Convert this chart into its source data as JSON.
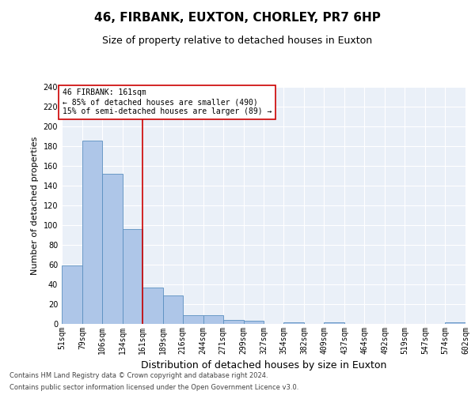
{
  "title": "46, FIRBANK, EUXTON, CHORLEY, PR7 6HP",
  "subtitle": "Size of property relative to detached houses in Euxton",
  "xlabel": "Distribution of detached houses by size in Euxton",
  "ylabel": "Number of detached properties",
  "bin_labels": [
    "51sqm",
    "79sqm",
    "106sqm",
    "134sqm",
    "161sqm",
    "189sqm",
    "216sqm",
    "244sqm",
    "271sqm",
    "299sqm",
    "327sqm",
    "354sqm",
    "382sqm",
    "409sqm",
    "437sqm",
    "464sqm",
    "492sqm",
    "519sqm",
    "547sqm",
    "574sqm",
    "602sqm"
  ],
  "bin_edges": [
    51,
    79,
    106,
    134,
    161,
    189,
    216,
    244,
    271,
    299,
    327,
    354,
    382,
    409,
    437,
    464,
    492,
    519,
    547,
    574,
    602
  ],
  "bar_heights": [
    59,
    186,
    152,
    96,
    37,
    29,
    9,
    9,
    4,
    3,
    0,
    2,
    0,
    2,
    0,
    0,
    0,
    0,
    0,
    2
  ],
  "bar_color": "#aec6e8",
  "bar_edge_color": "#5a8fc0",
  "property_line_x": 161,
  "property_line_color": "#cc0000",
  "ylim": [
    0,
    240
  ],
  "yticks": [
    0,
    20,
    40,
    60,
    80,
    100,
    120,
    140,
    160,
    180,
    200,
    220,
    240
  ],
  "annotation_text": "46 FIRBANK: 161sqm\n← 85% of detached houses are smaller (490)\n15% of semi-detached houses are larger (89) →",
  "annotation_box_color": "#ffffff",
  "annotation_box_edge_color": "#cc0000",
  "footer_line1": "Contains HM Land Registry data © Crown copyright and database right 2024.",
  "footer_line2": "Contains public sector information licensed under the Open Government Licence v3.0.",
  "background_color": "#eaf0f8",
  "grid_color": "#ffffff",
  "title_fontsize": 11,
  "subtitle_fontsize": 9,
  "axis_label_fontsize": 8,
  "tick_fontsize": 7,
  "annotation_fontsize": 7,
  "footer_fontsize": 6
}
